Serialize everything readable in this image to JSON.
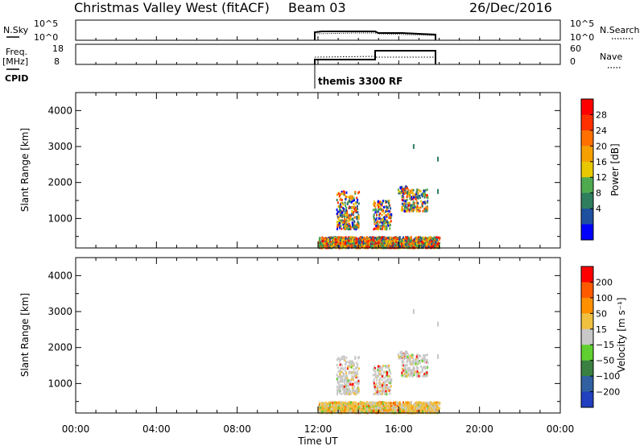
{
  "header": {
    "station": "Christmas Valley West (fitACF)",
    "beam": "Beam 03",
    "date": "26/Dec/2016"
  },
  "side_labels": {
    "nsky": "N.Sky",
    "freq_line1": "Freq.",
    "freq_line2": "[MHz]",
    "cpid": "CPID",
    "nsearch": "N.Search",
    "nave": "Nave"
  },
  "cpid_text": "themis 3300 RF",
  "noise_axis": {
    "left_ticks": [
      "10^5",
      "10^0"
    ],
    "right_ticks": [
      "10^5",
      "10^0"
    ]
  },
  "freq_axis": {
    "left_ticks": [
      "18",
      "8"
    ],
    "right_ticks": [
      "60",
      "0"
    ]
  },
  "colors": {
    "power": [
      "#0000ff",
      "#1e50a0",
      "#2f7f5f",
      "#4faa4f",
      "#e8c800",
      "#f5a000",
      "#ff7000",
      "#ff3000",
      "#ff0000"
    ],
    "velocity": [
      "#2040c0",
      "#3060a0",
      "#3a8040",
      "#60d030",
      "#c8c8c8",
      "#f0c040",
      "#ff9000",
      "#ff5a00",
      "#ff0000"
    ]
  },
  "chart_data": [
    {
      "type": "heatmap",
      "name": "power",
      "ylabel": "Slant Range [km]",
      "colorbar_label": "Power [dB]",
      "colorbar_ticks": [
        "28",
        "24",
        "20",
        "16",
        "12",
        "8",
        "4"
      ],
      "xlim": [
        0,
        24
      ],
      "ylim": [
        180,
        4500
      ],
      "yticks": [
        1000,
        2000,
        3000,
        4000
      ],
      "data_window_hours": [
        12,
        18
      ]
    },
    {
      "type": "heatmap",
      "name": "velocity",
      "xlabel": "Time UT",
      "ylabel": "Slant Range [km]",
      "colorbar_label": "Velocity [m s⁻¹]",
      "colorbar_ticks": [
        "200",
        "100",
        "50",
        "15",
        "−15",
        "−50",
        "−100",
        "−200"
      ],
      "xlim": [
        0,
        24
      ],
      "ylim": [
        180,
        4500
      ],
      "yticks": [
        1000,
        2000,
        3000,
        4000
      ],
      "xticks": [
        "00:00",
        "04:00",
        "08:00",
        "12:00",
        "16:00",
        "20:00",
        "00:00"
      ],
      "data_window_hours": [
        12,
        18
      ]
    }
  ]
}
